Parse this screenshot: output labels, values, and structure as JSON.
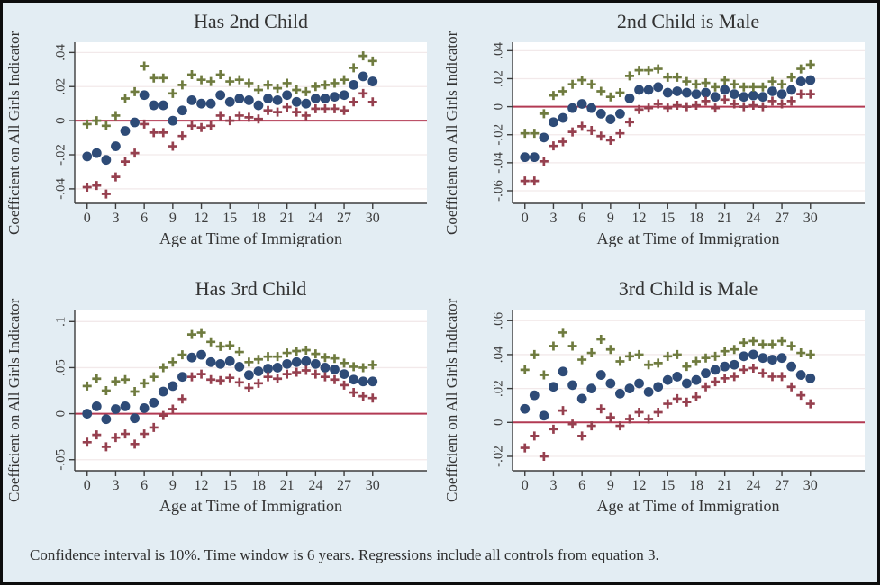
{
  "figure": {
    "note": "Confidence interval is 10%. Time window is 6 years. Regressions include all controls from equation 3.",
    "colors": {
      "background": "#e3edf3",
      "plot_bg": "#ffffff",
      "coef": "#2e4b77",
      "upper": "#6f7b3f",
      "lower": "#96404f",
      "zero_line": "#b23a53",
      "axis": "#3d3d3d",
      "gridline": "#f2e9ea",
      "text": "#333333"
    }
  },
  "chart_data": [
    {
      "type": "scatter",
      "title": "Has 2nd Child",
      "xlabel": "Age at Time of Immigration",
      "ylabel": "Coefficient on All Girls Indicator",
      "x": [
        0,
        1,
        2,
        3,
        4,
        5,
        6,
        7,
        8,
        9,
        10,
        11,
        12,
        13,
        14,
        15,
        16,
        17,
        18,
        19,
        20,
        21,
        22,
        23,
        24,
        25,
        26,
        27,
        28,
        29,
        30
      ],
      "xticks": [
        0,
        3,
        6,
        9,
        12,
        15,
        18,
        21,
        24,
        27,
        30
      ],
      "yticks": [
        -0.04,
        -0.02,
        0,
        0.02,
        0.04
      ],
      "ytick_labels": [
        "-.04",
        "-.02",
        "0",
        ".02",
        ".04"
      ],
      "xlim": [
        -1.3,
        35.7
      ],
      "ylim": [
        -0.0485,
        0.046
      ],
      "zero_line": 0,
      "grid": true,
      "legend": "none",
      "series": [
        {
          "name": "coefficient",
          "marker": "circle",
          "color_key": "coef",
          "values": [
            -0.021,
            -0.019,
            -0.023,
            -0.015,
            -0.006,
            -0.001,
            0.015,
            0.009,
            0.009,
            0.0,
            0.006,
            0.012,
            0.01,
            0.01,
            0.015,
            0.011,
            0.013,
            0.012,
            0.009,
            0.013,
            0.012,
            0.015,
            0.011,
            0.01,
            0.013,
            0.013,
            0.014,
            0.015,
            0.021,
            0.026,
            0.023
          ]
        },
        {
          "name": "ci-upper",
          "marker": "plus",
          "color_key": "upper",
          "values": [
            -0.002,
            0.0,
            -0.003,
            0.003,
            0.013,
            0.017,
            0.032,
            0.025,
            0.025,
            0.016,
            0.021,
            0.027,
            0.024,
            0.023,
            0.027,
            0.023,
            0.024,
            0.022,
            0.018,
            0.021,
            0.019,
            0.022,
            0.018,
            0.017,
            0.02,
            0.021,
            0.022,
            0.024,
            0.031,
            0.038,
            0.035
          ]
        },
        {
          "name": "ci-lower",
          "marker": "plus",
          "color_key": "lower",
          "values": [
            -0.039,
            -0.038,
            -0.043,
            -0.033,
            -0.024,
            -0.019,
            -0.002,
            -0.007,
            -0.007,
            -0.015,
            -0.009,
            -0.003,
            -0.004,
            -0.003,
            0.003,
            0.0,
            0.003,
            0.002,
            0.001,
            0.006,
            0.005,
            0.008,
            0.005,
            0.003,
            0.007,
            0.007,
            0.007,
            0.006,
            0.011,
            0.016,
            0.011
          ]
        }
      ]
    },
    {
      "type": "scatter",
      "title": "2nd Child is Male",
      "xlabel": "Age at Time of Immigration",
      "ylabel": "Coefficient on All Girls Indicator",
      "x": [
        0,
        1,
        2,
        3,
        4,
        5,
        6,
        7,
        8,
        9,
        10,
        11,
        12,
        13,
        14,
        15,
        16,
        17,
        18,
        19,
        20,
        21,
        22,
        23,
        24,
        25,
        26,
        27,
        28,
        29,
        30
      ],
      "xticks": [
        0,
        3,
        6,
        9,
        12,
        15,
        18,
        21,
        24,
        27,
        30
      ],
      "yticks": [
        -0.06,
        -0.04,
        -0.02,
        0,
        0.02,
        0.04
      ],
      "ytick_labels": [
        "-.06",
        "-.04",
        "-.02",
        "0",
        ".02",
        ".04"
      ],
      "xlim": [
        -1.3,
        35.7
      ],
      "ylim": [
        -0.069,
        0.046
      ],
      "zero_line": 0,
      "grid": true,
      "legend": "none",
      "series": [
        {
          "name": "coefficient",
          "marker": "circle",
          "color_key": "coef",
          "values": [
            -0.036,
            -0.036,
            -0.022,
            -0.011,
            -0.008,
            -0.001,
            0.002,
            -0.001,
            -0.005,
            -0.009,
            -0.005,
            0.006,
            0.012,
            0.012,
            0.014,
            0.01,
            0.011,
            0.01,
            0.009,
            0.01,
            0.007,
            0.012,
            0.009,
            0.007,
            0.008,
            0.007,
            0.011,
            0.009,
            0.012,
            0.018,
            0.019
          ]
        },
        {
          "name": "ci-upper",
          "marker": "plus",
          "color_key": "upper",
          "values": [
            -0.019,
            -0.019,
            -0.005,
            0.008,
            0.011,
            0.016,
            0.019,
            0.016,
            0.011,
            0.007,
            0.01,
            0.022,
            0.026,
            0.026,
            0.027,
            0.021,
            0.021,
            0.018,
            0.016,
            0.017,
            0.014,
            0.019,
            0.016,
            0.014,
            0.014,
            0.014,
            0.018,
            0.016,
            0.021,
            0.027,
            0.03
          ]
        },
        {
          "name": "ci-lower",
          "marker": "plus",
          "color_key": "lower",
          "values": [
            -0.053,
            -0.053,
            -0.039,
            -0.028,
            -0.025,
            -0.018,
            -0.014,
            -0.017,
            -0.021,
            -0.024,
            -0.019,
            -0.011,
            -0.002,
            -0.001,
            0.002,
            -0.001,
            0.001,
            0.0,
            0.001,
            0.004,
            -0.001,
            0.005,
            0.002,
            0.0,
            0.001,
            0.0,
            0.004,
            0.002,
            0.004,
            0.009,
            0.009
          ]
        }
      ]
    },
    {
      "type": "scatter",
      "title": "Has 3rd Child",
      "xlabel": "Age at Time of Immigration",
      "ylabel": "Coefficient on All Girls Indicator",
      "x": [
        0,
        1,
        2,
        3,
        4,
        5,
        6,
        7,
        8,
        9,
        10,
        11,
        12,
        13,
        14,
        15,
        16,
        17,
        18,
        19,
        20,
        21,
        22,
        23,
        24,
        25,
        26,
        27,
        28,
        29,
        30
      ],
      "xticks": [
        0,
        3,
        6,
        9,
        12,
        15,
        18,
        21,
        24,
        27,
        30
      ],
      "yticks": [
        -0.05,
        0,
        0.05,
        0.1
      ],
      "ytick_labels": [
        "-.05",
        "0",
        ".05",
        ".1"
      ],
      "xlim": [
        -1.3,
        35.7
      ],
      "ylim": [
        -0.062,
        0.113
      ],
      "zero_line": 0,
      "grid": true,
      "legend": "none",
      "series": [
        {
          "name": "coefficient",
          "marker": "circle",
          "color_key": "coef",
          "values": [
            0.0,
            0.008,
            -0.006,
            0.005,
            0.008,
            -0.005,
            0.006,
            0.012,
            0.024,
            0.03,
            0.04,
            0.061,
            0.064,
            0.056,
            0.054,
            0.057,
            0.051,
            0.042,
            0.046,
            0.049,
            0.05,
            0.054,
            0.056,
            0.057,
            0.054,
            0.05,
            0.048,
            0.043,
            0.037,
            0.035,
            0.035
          ]
        },
        {
          "name": "ci-upper",
          "marker": "plus",
          "color_key": "upper",
          "values": [
            0.03,
            0.038,
            0.025,
            0.035,
            0.037,
            0.024,
            0.033,
            0.04,
            0.05,
            0.056,
            0.064,
            0.086,
            0.088,
            0.078,
            0.073,
            0.074,
            0.067,
            0.056,
            0.059,
            0.062,
            0.062,
            0.066,
            0.068,
            0.069,
            0.065,
            0.061,
            0.06,
            0.055,
            0.051,
            0.05,
            0.053
          ]
        },
        {
          "name": "ci-lower",
          "marker": "plus",
          "color_key": "lower",
          "values": [
            -0.031,
            -0.023,
            -0.036,
            -0.026,
            -0.022,
            -0.033,
            -0.022,
            -0.015,
            -0.002,
            0.005,
            0.016,
            0.04,
            0.043,
            0.037,
            0.036,
            0.039,
            0.034,
            0.028,
            0.033,
            0.04,
            0.038,
            0.043,
            0.045,
            0.047,
            0.043,
            0.04,
            0.037,
            0.031,
            0.023,
            0.019,
            0.017
          ]
        }
      ]
    },
    {
      "type": "scatter",
      "title": "3rd Child is Male",
      "xlabel": "Age at Time of Immigration",
      "ylabel": "Coefficient on All Girls Indicator",
      "x": [
        0,
        1,
        2,
        3,
        4,
        5,
        6,
        7,
        8,
        9,
        10,
        11,
        12,
        13,
        14,
        15,
        16,
        17,
        18,
        19,
        20,
        21,
        22,
        23,
        24,
        25,
        26,
        27,
        28,
        29,
        30
      ],
      "xticks": [
        0,
        3,
        6,
        9,
        12,
        15,
        18,
        21,
        24,
        27,
        30
      ],
      "yticks": [
        -0.02,
        0,
        0.02,
        0.04,
        0.06
      ],
      "ytick_labels": [
        "-.02",
        "0",
        ".02",
        ".04",
        ".06"
      ],
      "xlim": [
        -1.3,
        35.7
      ],
      "ylim": [
        -0.0285,
        0.0665
      ],
      "zero_line": 0,
      "grid": true,
      "legend": "none",
      "series": [
        {
          "name": "coefficient",
          "marker": "circle",
          "color_key": "coef",
          "values": [
            0.008,
            0.016,
            0.004,
            0.021,
            0.03,
            0.022,
            0.014,
            0.02,
            0.028,
            0.023,
            0.017,
            0.02,
            0.023,
            0.018,
            0.021,
            0.025,
            0.027,
            0.023,
            0.025,
            0.029,
            0.031,
            0.033,
            0.034,
            0.039,
            0.04,
            0.038,
            0.037,
            0.038,
            0.033,
            0.028,
            0.026
          ]
        },
        {
          "name": "ci-upper",
          "marker": "plus",
          "color_key": "upper",
          "values": [
            0.031,
            0.04,
            0.028,
            0.045,
            0.053,
            0.045,
            0.037,
            0.041,
            0.049,
            0.043,
            0.036,
            0.039,
            0.04,
            0.034,
            0.035,
            0.039,
            0.04,
            0.033,
            0.036,
            0.038,
            0.039,
            0.042,
            0.043,
            0.047,
            0.048,
            0.046,
            0.046,
            0.048,
            0.045,
            0.041,
            0.04
          ]
        },
        {
          "name": "ci-lower",
          "marker": "plus",
          "color_key": "lower",
          "values": [
            -0.015,
            -0.008,
            -0.02,
            -0.004,
            0.007,
            -0.001,
            -0.008,
            -0.002,
            0.008,
            0.003,
            -0.002,
            0.002,
            0.006,
            0.002,
            0.006,
            0.011,
            0.014,
            0.012,
            0.015,
            0.021,
            0.024,
            0.026,
            0.027,
            0.031,
            0.032,
            0.029,
            0.027,
            0.027,
            0.021,
            0.016,
            0.011
          ]
        }
      ]
    }
  ]
}
